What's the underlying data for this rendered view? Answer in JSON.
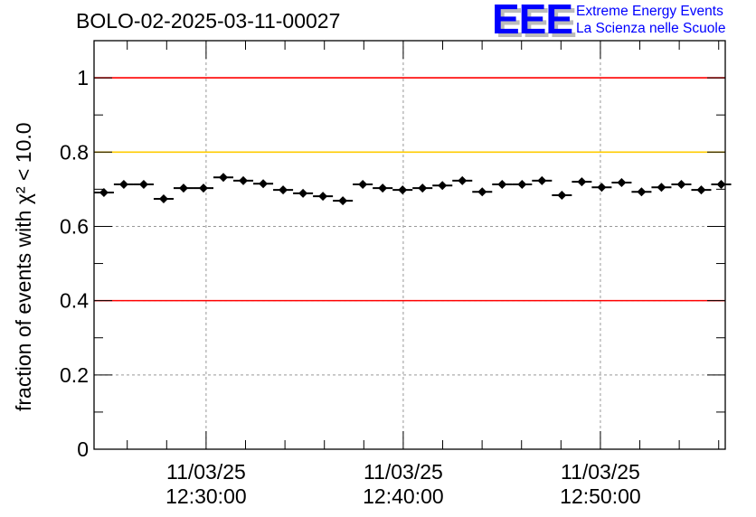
{
  "chart_data": {
    "type": "scatter",
    "title": "BOLO-02-2025-03-11-00027",
    "xlabel": "",
    "ylabel": "fraction of events with χ² < 10.0",
    "ylabel_parts": {
      "pre": "fraction of events with ",
      "sym": "χ",
      "sup": "2",
      "post": " < 10.0"
    },
    "ylim": [
      0,
      1.1
    ],
    "xlim_seconds_from_1230": [
      -341,
      1580
    ],
    "yticks": [
      "0",
      "0.2",
      "0.4",
      "0.6",
      "0.8",
      "1"
    ],
    "xticks": [
      {
        "date": "11/03/25",
        "time": "12:30:00",
        "t": 0
      },
      {
        "date": "11/03/25",
        "time": "12:40:00",
        "t": 600
      },
      {
        "date": "11/03/25",
        "time": "12:50:00",
        "t": 1200
      }
    ],
    "grid": true,
    "bin_width_s": 60.6,
    "first_bin_center_s": -311,
    "values": [
      0.691,
      0.713,
      0.713,
      0.674,
      0.703,
      0.703,
      0.732,
      0.723,
      0.715,
      0.698,
      0.689,
      0.681,
      0.669,
      0.713,
      0.703,
      0.698,
      0.703,
      0.71,
      0.723,
      0.693,
      0.713,
      0.713,
      0.723,
      0.684,
      0.72,
      0.705,
      0.718,
      0.693,
      0.705,
      0.713,
      0.698,
      0.713
    ],
    "reference_lines": [
      {
        "y": 1.0,
        "color": "#ff0000"
      },
      {
        "y": 0.8,
        "color": "#ffcc00"
      },
      {
        "y": 0.4,
        "color": "#ff0000"
      }
    ]
  },
  "logo": {
    "text": "EEE",
    "line1": "Extreme Energy Events",
    "line2": "La Scienza nelle Scuole",
    "color": "#0000ff"
  }
}
